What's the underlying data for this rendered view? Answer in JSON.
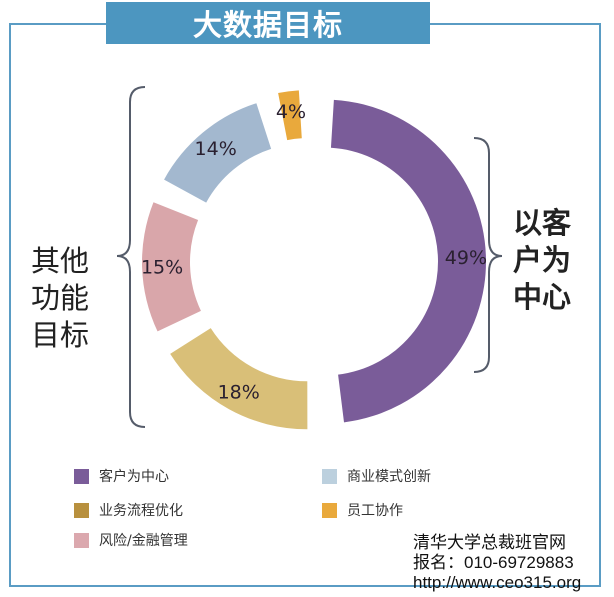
{
  "header": {
    "title": "大数据目标"
  },
  "side_labels": {
    "left": [
      "其他",
      "功能",
      "目标"
    ],
    "right": [
      "以客",
      "户为",
      "中心"
    ]
  },
  "chart_data": {
    "type": "pie",
    "variant": "donut",
    "title": "大数据目标",
    "slices": [
      {
        "label": "客户为中心",
        "value": 49,
        "display": "49%",
        "color": "#7a5c99"
      },
      {
        "label": "业务流程优化",
        "value": 18,
        "display": "18%",
        "color": "#d9bf78"
      },
      {
        "label": "风险/金融管理",
        "value": 15,
        "display": "15%",
        "color": "#d9a6aa"
      },
      {
        "label": "商业模式创新",
        "value": 14,
        "display": "14%",
        "color": "#a3b8cf"
      },
      {
        "label": "员工协作",
        "value": 4,
        "display": "4%",
        "color": "#e9a93c"
      }
    ],
    "legend": [
      {
        "label": "客户为中心",
        "color": "#7a5c99"
      },
      {
        "label": "商业模式创新",
        "color": "#bcd0de"
      },
      {
        "label": "业务流程优化",
        "color": "#b8903e"
      },
      {
        "label": "员工协作",
        "color": "#e9a93c"
      },
      {
        "label": "风险/金融管理",
        "color": "#dba8ae"
      }
    ],
    "legend_position": "bottom"
  },
  "watermark": {
    "line1": "清华大学总裁班官网",
    "line2": "报名：010-69729883",
    "line3": "http://www.ceo315.org"
  }
}
